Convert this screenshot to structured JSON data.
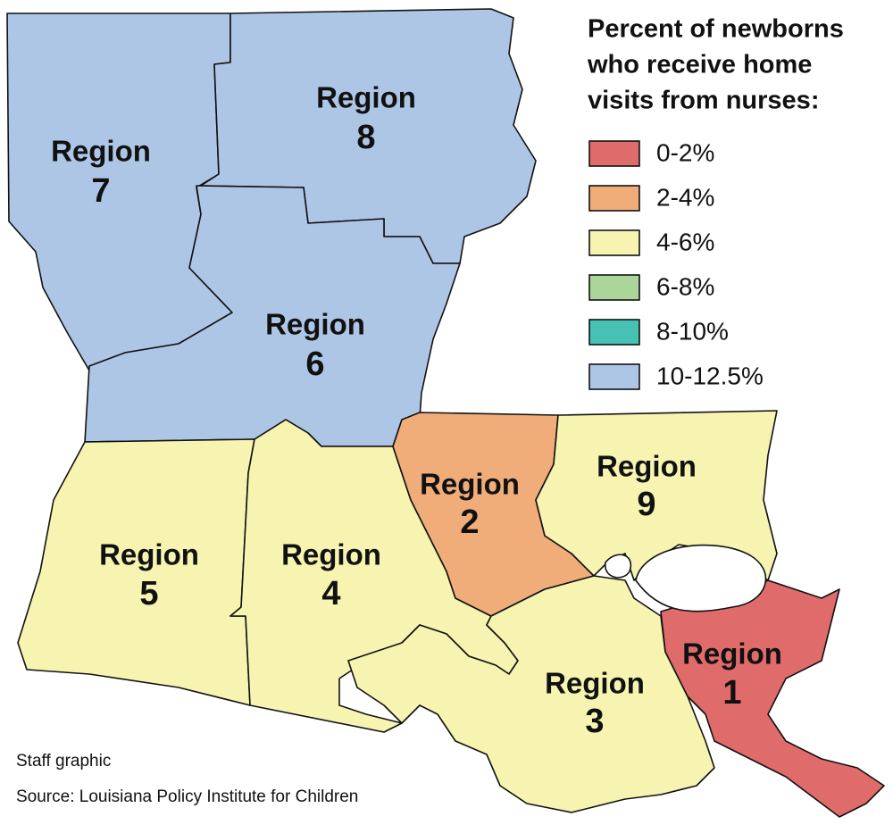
{
  "legend": {
    "title_lines": [
      "Percent of newborns",
      "who receive home",
      "visits from nurses:"
    ],
    "items": [
      {
        "label": "0-2%",
        "color": "#e06b6b"
      },
      {
        "label": "2-4%",
        "color": "#f0ad7a"
      },
      {
        "label": "4-6%",
        "color": "#f6f4b0"
      },
      {
        "label": "6-8%",
        "color": "#acd59a"
      },
      {
        "label": "8-10%",
        "color": "#46c1b4"
      },
      {
        "label": "10-12.5%",
        "color": "#aec6e6"
      }
    ]
  },
  "regions": [
    {
      "label": "Region",
      "number": "7"
    },
    {
      "label": "Region",
      "number": "8"
    },
    {
      "label": "Region",
      "number": "6"
    },
    {
      "label": "Region",
      "number": "2"
    },
    {
      "label": "Region",
      "number": "9"
    },
    {
      "label": "Region",
      "number": "5"
    },
    {
      "label": "Region",
      "number": "4"
    },
    {
      "label": "Region",
      "number": "3"
    },
    {
      "label": "Region",
      "number": "1"
    }
  ],
  "credits": [
    "Staff graphic",
    "Source: Louisiana Policy Institute for Children"
  ]
}
